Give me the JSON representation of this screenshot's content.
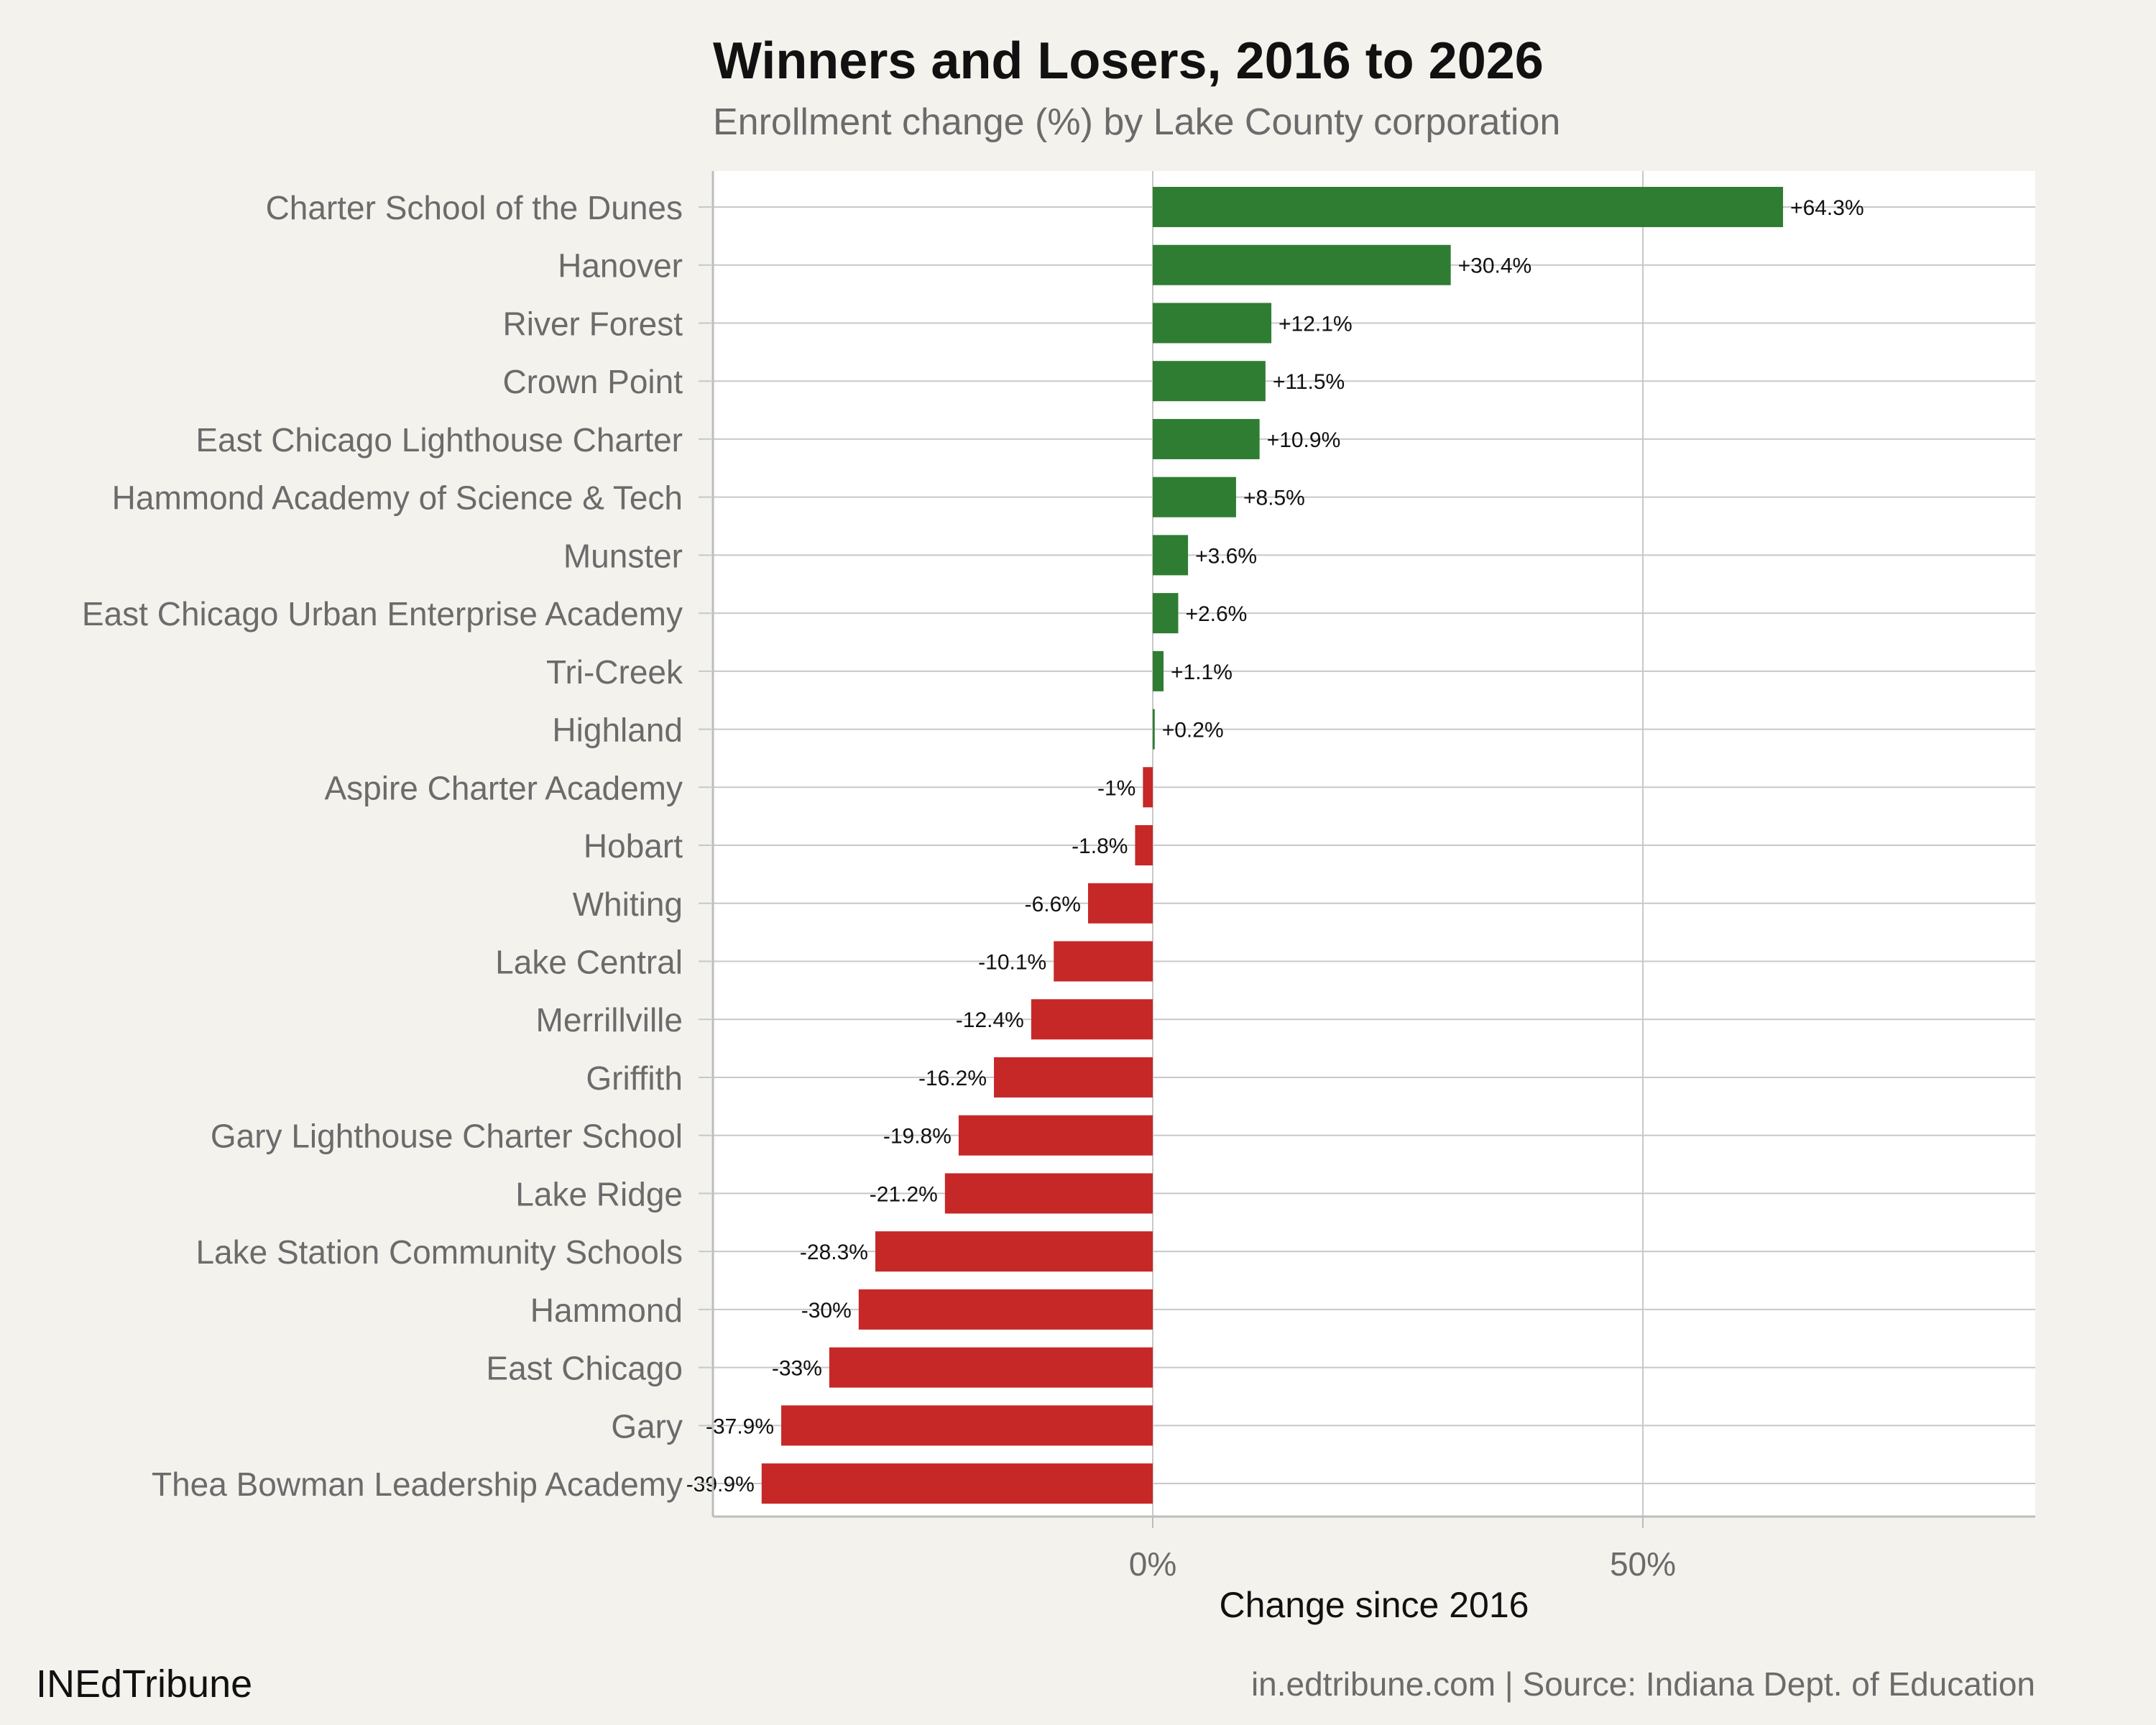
{
  "header": {
    "title": "Winners and Losers, 2016 to 2026",
    "subtitle": "Enrollment change (%) by Lake County corporation"
  },
  "footer": {
    "brand": "INEdTribune",
    "source": "in.edtribune.com | Source: Indiana Dept. of Education"
  },
  "colors": {
    "positive": "#2f7d32",
    "negative": "#c62828",
    "background": "#f4f2ed",
    "panel": "#ffffff",
    "grid": "#c8c8c8"
  },
  "chart_data": {
    "type": "bar",
    "orientation": "horizontal",
    "xlabel": "Change since 2016",
    "xticks": [
      "0%",
      "50%"
    ],
    "xlim": [
      -45,
      90
    ],
    "grid": true,
    "categories": [
      "Charter School of the Dunes",
      "Hanover",
      "River Forest",
      "Crown Point",
      "East Chicago Lighthouse Charter",
      "Hammond Academy of Science & Tech",
      "Munster",
      "East Chicago Urban Enterprise Academy",
      "Tri-Creek",
      "Highland",
      "Aspire Charter Academy",
      "Hobart",
      "Whiting",
      "Lake Central",
      "Merrillville",
      "Griffith",
      "Gary Lighthouse Charter School",
      "Lake Ridge",
      "Lake Station Community Schools",
      "Hammond",
      "East Chicago",
      "Gary",
      "Thea Bowman Leadership Academy"
    ],
    "values": [
      64.3,
      30.4,
      12.1,
      11.5,
      10.9,
      8.5,
      3.6,
      2.6,
      1.1,
      0.2,
      -1,
      -1.8,
      -6.6,
      -10.1,
      -12.4,
      -16.2,
      -19.8,
      -21.2,
      -28.3,
      -30,
      -33,
      -37.9,
      -39.9
    ],
    "labels": [
      "+64.3%",
      "+30.4%",
      "+12.1%",
      "+11.5%",
      "+10.9%",
      "+8.5%",
      "+3.6%",
      "+2.6%",
      "+1.1%",
      "+0.2%",
      "-1%",
      "-1.8%",
      "-6.6%",
      "-10.1%",
      "-12.4%",
      "-16.2%",
      "-19.8%",
      "-21.2%",
      "-28.3%",
      "-30%",
      "-33%",
      "-37.9%",
      "-39.9%"
    ]
  }
}
